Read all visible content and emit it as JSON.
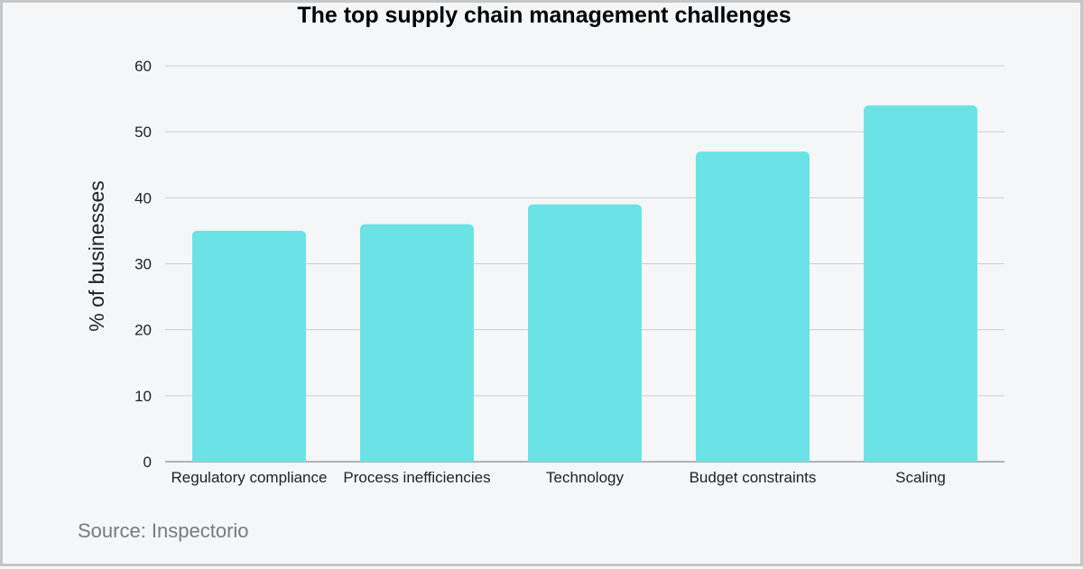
{
  "chart_data": {
    "type": "bar",
    "title": "The top supply chain management challenges",
    "categories": [
      "Regulatory compliance",
      "Process inefficiencies",
      "Technology",
      "Budget constraints",
      "Scaling"
    ],
    "values": [
      35,
      36,
      39,
      47,
      54
    ],
    "xlabel": "",
    "ylabel": "% of businesses",
    "ylim": [
      0,
      60
    ],
    "yticks": [
      0,
      10,
      20,
      30,
      40,
      50,
      60
    ],
    "grid": true,
    "bar_color": "#6be3e6",
    "grid_color": "#cfcfcf"
  },
  "source": "Source: Inspectorio"
}
